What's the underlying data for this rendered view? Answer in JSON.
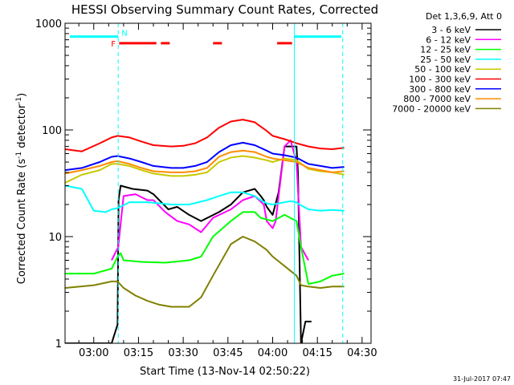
{
  "chart_data": {
    "type": "line",
    "title": "HESSI Observing Summary Count Rates, Corrected",
    "xlabel": "Start Time (13-Nov-14 02:50:22)",
    "ylabel": "Corrected Count Rate (s",
    "ylabel_sup1": "-1",
    "ylabel_mid": " detector",
    "ylabel_sup2": "-1",
    "ylabel_end": ")",
    "footer_date": "31-Jul-2017 07:47",
    "x_unit": "minutes since 00:00 UT",
    "xlim": [
      170.37,
      273
    ],
    "y_scale": "log",
    "ylim": [
      1,
      1000
    ],
    "x_ticks": [
      {
        "value": 180,
        "label": "03:00"
      },
      {
        "value": 195,
        "label": "03:15"
      },
      {
        "value": 210,
        "label": "03:30"
      },
      {
        "value": 225,
        "label": "03:45"
      },
      {
        "value": 240,
        "label": "04:00"
      },
      {
        "value": 255,
        "label": "04:15"
      },
      {
        "value": 270,
        "label": "04:30"
      }
    ],
    "y_ticks": [
      {
        "value": 1,
        "label": "1"
      },
      {
        "value": 10,
        "label": "10"
      },
      {
        "value": 100,
        "label": "100"
      },
      {
        "value": 1000,
        "label": "1000"
      }
    ],
    "legend_header": "Det 1,3,6,9, Att 0",
    "legend_position": "right",
    "series": [
      {
        "name": "3 - 6 keV",
        "color": "#000000",
        "x": [
          170.4,
          180,
          186,
          188,
          188.3,
          189,
          193,
          198,
          200,
          205,
          208,
          212,
          216,
          222,
          226,
          230,
          234,
          236,
          237,
          238,
          240,
          242,
          244,
          248,
          248.5,
          249.5,
          251,
          253
        ],
        "y": [
          1,
          1,
          1,
          1.5,
          22,
          30,
          28,
          27,
          25,
          18,
          19,
          16,
          14,
          17,
          20,
          26,
          28,
          24,
          22,
          19,
          16,
          26,
          70,
          70,
          40,
          1,
          1.6,
          1.6
        ]
      },
      {
        "name": "6 - 12 keV",
        "color": "#ff00ff",
        "x": [
          186,
          188.2,
          190,
          194,
          198,
          200,
          204,
          208,
          212,
          216,
          220,
          226,
          230,
          234,
          237,
          238,
          240,
          241,
          244,
          246,
          248,
          249.5,
          252
        ],
        "y": [
          6,
          8,
          24,
          25,
          22,
          22,
          17,
          14,
          13,
          11,
          15,
          18,
          22,
          24,
          20,
          14,
          12,
          14,
          70,
          80,
          50,
          8,
          6
        ]
      },
      {
        "name": "12 - 25 keV",
        "color": "#00ff00",
        "x": [
          170.4,
          180,
          186,
          188,
          189,
          190,
          196,
          204,
          212,
          216,
          220,
          226,
          230,
          234,
          236,
          240,
          244,
          248,
          249.5,
          252,
          256,
          260,
          264
        ],
        "y": [
          4.5,
          4.5,
          5,
          6.5,
          7,
          6,
          5.8,
          5.7,
          6,
          6.5,
          10,
          14,
          17,
          17,
          15,
          14,
          16,
          14,
          8,
          3.6,
          3.8,
          4.3,
          4.5
        ]
      },
      {
        "name": "25 - 50 keV",
        "color": "#00ffff",
        "x": [
          170.4,
          176,
          180,
          184,
          186,
          188,
          192,
          198,
          202,
          206,
          212,
          218,
          222,
          226,
          230,
          234,
          236,
          238,
          240,
          244,
          246,
          248,
          249,
          252,
          256,
          260,
          264
        ],
        "y": [
          30,
          28,
          17.5,
          17,
          18,
          18.5,
          21,
          21,
          20.5,
          20,
          20,
          22,
          24,
          26,
          26,
          24,
          22,
          20.5,
          20,
          21,
          21.5,
          21,
          20,
          18,
          17.5,
          17.8,
          17.5
        ]
      },
      {
        "name": "50 - 100 keV",
        "color": "#c8c800",
        "x": [
          170.4,
          176,
          182,
          186,
          188,
          192,
          196,
          200,
          206,
          210,
          214,
          218,
          222,
          226,
          230,
          234,
          238,
          240,
          244,
          248,
          252,
          256,
          260,
          264
        ],
        "y": [
          32,
          38,
          42,
          48,
          48,
          46,
          42,
          39,
          37,
          37,
          38,
          40,
          50,
          55,
          57,
          55,
          52,
          50,
          54,
          52,
          43,
          41,
          40,
          38
        ]
      },
      {
        "name": "100 - 300 keV",
        "color": "#ff0000",
        "x": [
          170.4,
          176,
          182,
          186,
          188,
          192,
          196,
          200,
          206,
          210,
          214,
          218,
          222,
          226,
          230,
          234,
          238,
          240,
          244,
          248,
          252,
          256,
          260,
          264
        ],
        "y": [
          66,
          63,
          75,
          85,
          88,
          85,
          78,
          72,
          70,
          71,
          75,
          85,
          105,
          120,
          125,
          118,
          98,
          88,
          82,
          75,
          70,
          67,
          66,
          68
        ]
      },
      {
        "name": "300 - 800 keV",
        "color": "#0000ff",
        "x": [
          170.4,
          176,
          182,
          186,
          188,
          192,
          196,
          200,
          206,
          210,
          214,
          218,
          222,
          226,
          230,
          234,
          238,
          240,
          244,
          248,
          252,
          256,
          260,
          264
        ],
        "y": [
          42,
          44,
          50,
          56,
          57,
          54,
          50,
          46,
          44,
          44,
          46,
          50,
          62,
          72,
          76,
          72,
          64,
          60,
          58,
          55,
          48,
          46,
          44,
          45
        ]
      },
      {
        "name": "800 - 7000 keV",
        "color": "#ff8c00",
        "x": [
          170.4,
          176,
          182,
          186,
          188,
          192,
          196,
          200,
          206,
          210,
          214,
          218,
          222,
          226,
          230,
          234,
          238,
          240,
          244,
          248,
          252,
          256,
          260,
          264
        ],
        "y": [
          39,
          42,
          46,
          50,
          51,
          48,
          44,
          41,
          40,
          40,
          41,
          44,
          56,
          62,
          64,
          62,
          56,
          54,
          52,
          50,
          44,
          42,
          40,
          41
        ]
      },
      {
        "name": "7000 - 20000 keV",
        "color": "#808000",
        "x": [
          170.4,
          180,
          186,
          188,
          190,
          194,
          198,
          202,
          206,
          212,
          216,
          220,
          226,
          230,
          234,
          238,
          240,
          244,
          248,
          249.5,
          252,
          256,
          260,
          264
        ],
        "y": [
          3.3,
          3.5,
          3.8,
          3.8,
          3.3,
          2.8,
          2.5,
          2.3,
          2.2,
          2.2,
          2.7,
          4.3,
          8.5,
          10,
          9,
          7.5,
          6.5,
          5.3,
          4.3,
          3.5,
          3.4,
          3.3,
          3.4,
          3.4
        ]
      }
    ],
    "annotations": {
      "night_markers": [
        {
          "label": "N",
          "x_start": 172,
          "x_end": 188.2,
          "y": 750,
          "color": "#00ffff"
        },
        {
          "label": "",
          "x_start": 247.3,
          "x_end": 263,
          "y": 750,
          "color": "#00ffff"
        }
      ],
      "flare_markers": [
        {
          "label": "F",
          "color": "#ff0000",
          "y": 650,
          "segments": [
            [
              188.5,
              201
            ],
            [
              202.5,
              205.5
            ],
            [
              220,
              223
            ],
            [
              241.5,
              246.5
            ]
          ]
        }
      ],
      "vertical_lines": [
        {
          "x": 188.2,
          "color": "#00ffff",
          "style": "dashed"
        },
        {
          "x": 247.3,
          "color": "#00ffff",
          "style": "solid"
        },
        {
          "x": 263.5,
          "color": "#00ffff",
          "style": "dashed"
        }
      ]
    }
  }
}
